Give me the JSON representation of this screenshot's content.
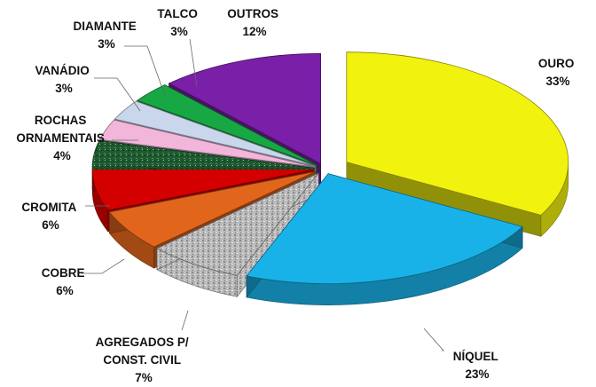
{
  "chart_data": {
    "type": "pie",
    "style": "3d-exploded",
    "slices": [
      {
        "name": "OURO",
        "pct_label": "33%",
        "value": 33,
        "color": "#f2f20f"
      },
      {
        "name": "NÍQUEL",
        "pct_label": "23%",
        "value": 23,
        "color": "#19b2e8"
      },
      {
        "name": "AGREGADOS P/ CONST. CIVIL",
        "pct_label": "7%",
        "value": 7,
        "color": "#b4b4b4"
      },
      {
        "name": "COBRE",
        "pct_label": "6%",
        "value": 6,
        "color": "#e1661c"
      },
      {
        "name": "CROMITA",
        "pct_label": "6%",
        "value": 6,
        "color": "#d40000"
      },
      {
        "name": "ROCHAS ORNAMENTAIS",
        "pct_label": "4%",
        "value": 4,
        "color": "#1f5a30"
      },
      {
        "name": "VANÁDIO",
        "pct_label": "3%",
        "value": 3,
        "color": "#f2b6da"
      },
      {
        "name": "DIAMANTE",
        "pct_label": "3%",
        "value": 3,
        "color": "#c9d6ec"
      },
      {
        "name": "TALCO",
        "pct_label": "3%",
        "value": 3,
        "color": "#17a844"
      },
      {
        "name": "OUTROS",
        "pct_label": "12%",
        "value": 12,
        "color": "#7a1fa8"
      }
    ],
    "labels": {
      "ouro": {
        "line1": "OURO",
        "pct": "33%"
      },
      "niquel": {
        "line1": "NÍQUEL",
        "pct": "23%"
      },
      "agregados": {
        "line1": "AGREGADOS P/",
        "line2": "CONST. CIVIL",
        "pct": "7%"
      },
      "cobre": {
        "line1": "COBRE",
        "pct": "6%"
      },
      "cromita": {
        "line1": "CROMITA",
        "pct": "6%"
      },
      "rochas": {
        "line1": "ROCHAS",
        "line2": "ORNAMENTAIS",
        "pct": "4%"
      },
      "vanadio": {
        "line1": "VANÁDIO",
        "pct": "3%"
      },
      "diamante": {
        "line1": "DIAMANTE",
        "pct": "3%"
      },
      "talco": {
        "line1": "TALCO",
        "pct": "3%"
      },
      "outros": {
        "line1": "OUTROS",
        "pct": "12%"
      }
    }
  }
}
